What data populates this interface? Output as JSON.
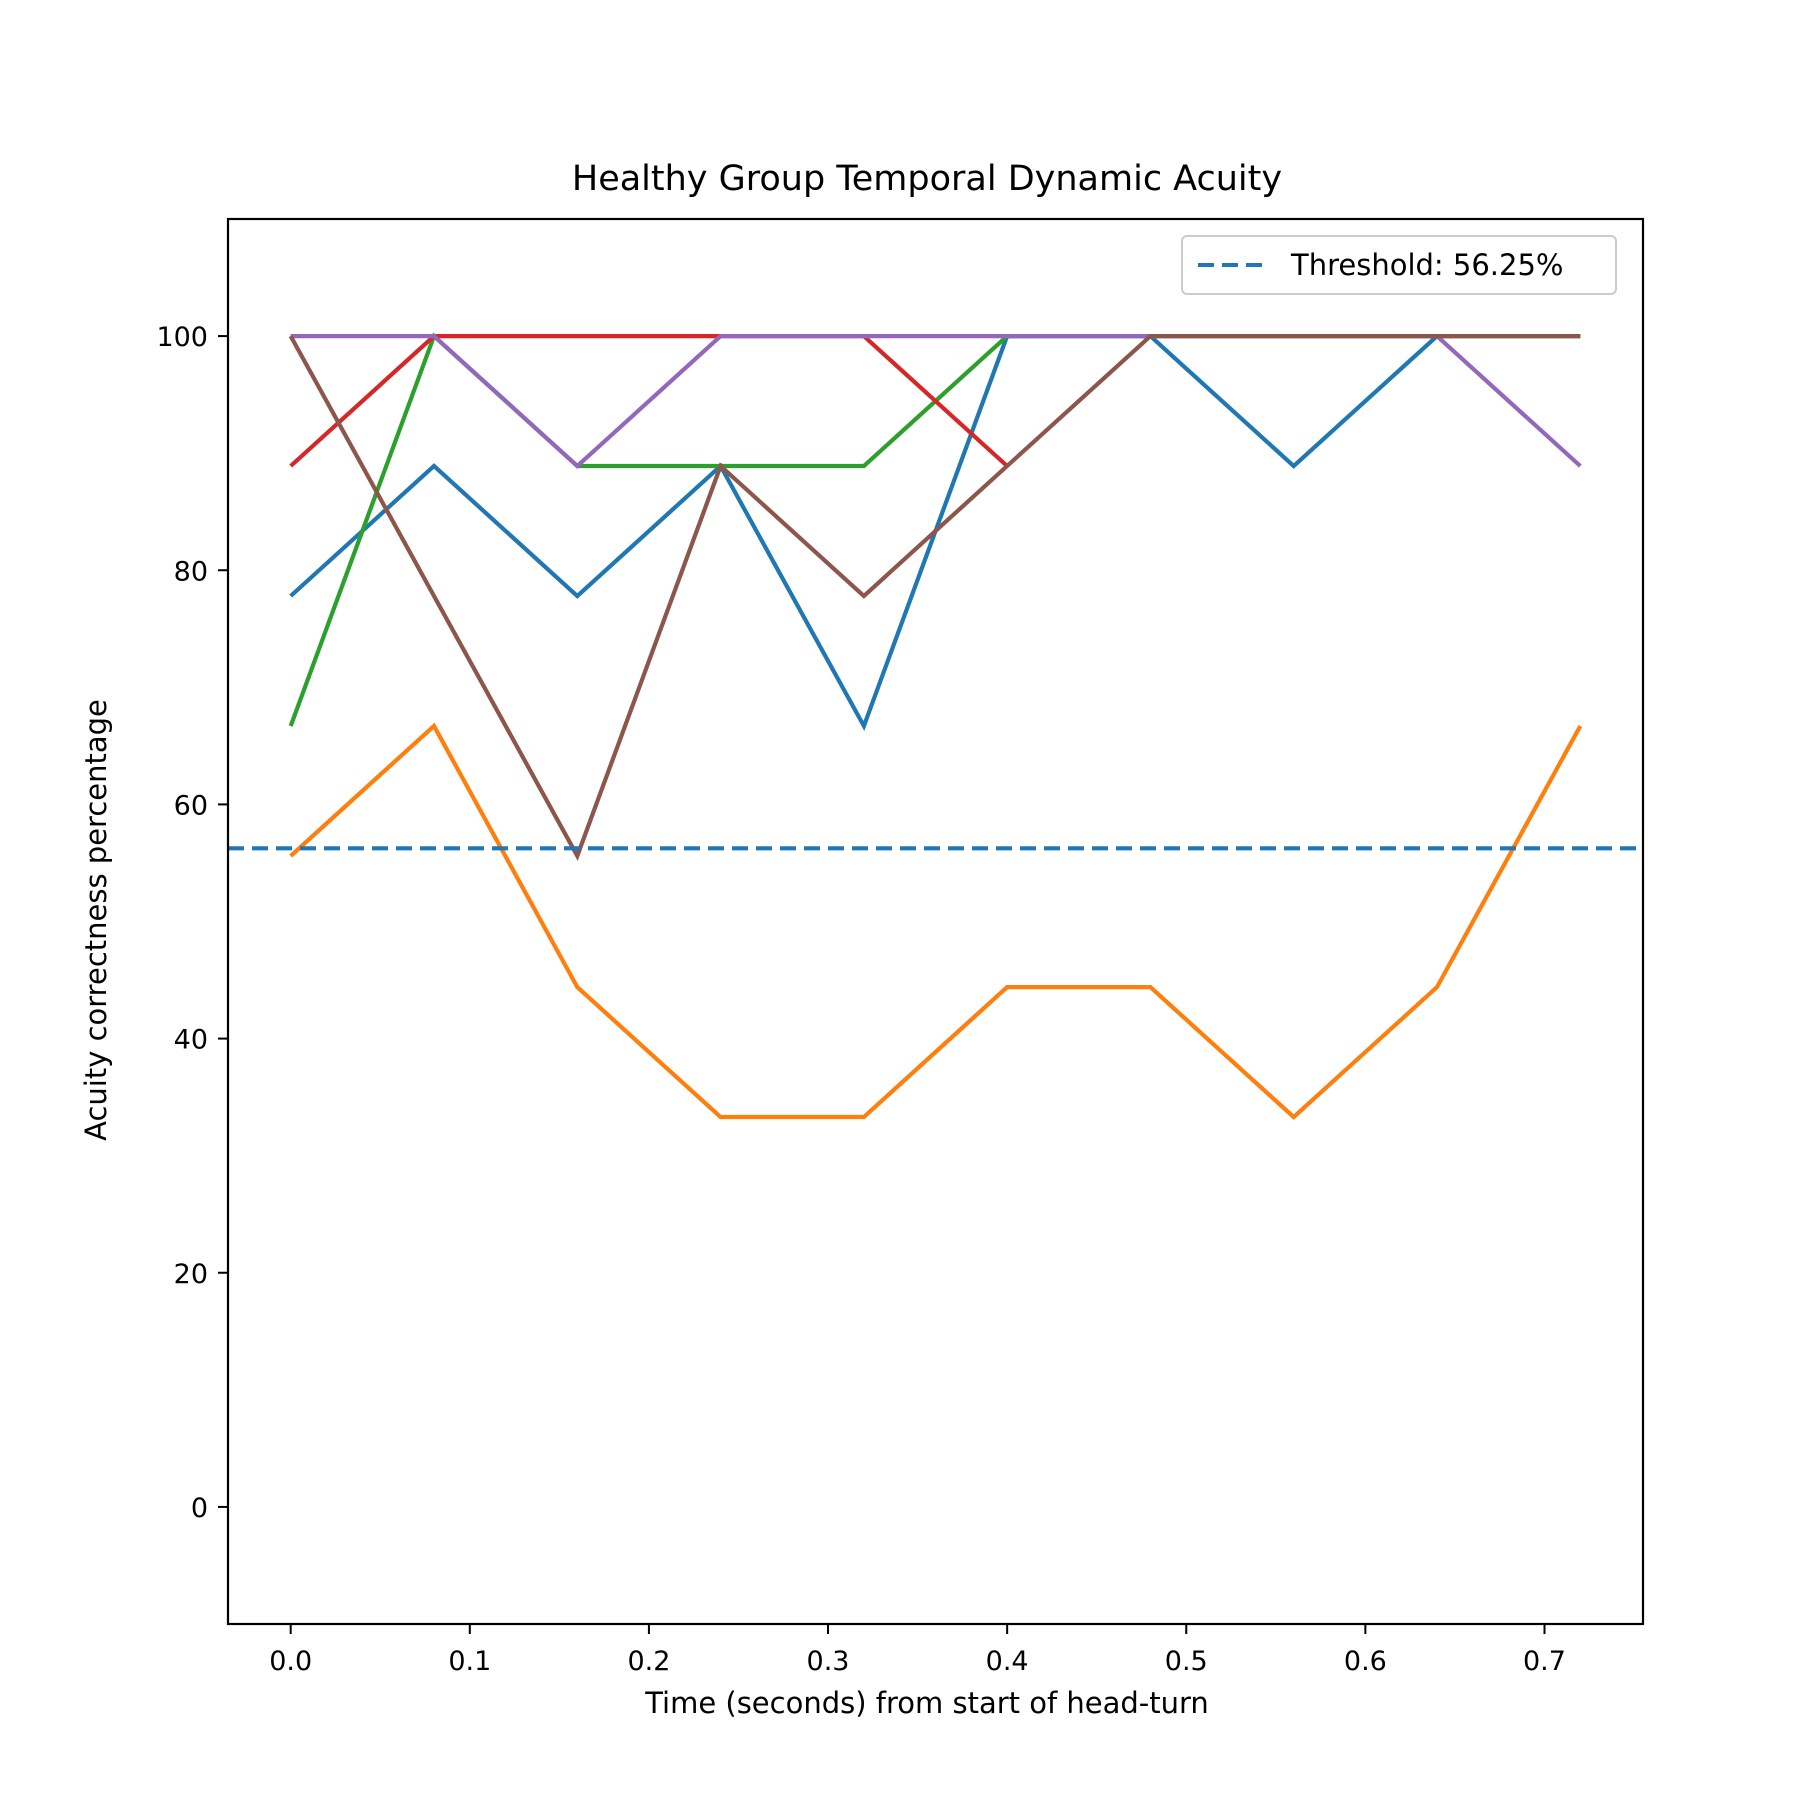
{
  "chart_data": {
    "type": "line",
    "title": "Healthy Group Temporal Dynamic Acuity",
    "xlabel": "Time (seconds) from start of head-turn",
    "ylabel": "Acuity correctness percentage",
    "xlim": [
      -0.035,
      0.755
    ],
    "ylim": [
      -10,
      110
    ],
    "xticks": [
      0.0,
      0.1,
      0.2,
      0.3,
      0.4,
      0.5,
      0.6,
      0.7
    ],
    "xtick_labels": [
      "0.0",
      "0.1",
      "0.2",
      "0.3",
      "0.4",
      "0.5",
      "0.6",
      "0.7"
    ],
    "yticks": [
      0,
      20,
      40,
      60,
      80,
      100
    ],
    "ytick_labels": [
      "0",
      "20",
      "40",
      "60",
      "80",
      "100"
    ],
    "grid": false,
    "legend_position": "top-right",
    "threshold": {
      "label": "Threshold: 56.25%",
      "value": 56.25,
      "color": "#1f77b4",
      "style": "dashed"
    },
    "series": [
      {
        "color": "#1f77b4",
        "x": [
          0.0,
          0.08,
          0.16,
          0.24,
          0.32,
          0.4,
          0.48,
          0.56,
          0.64,
          0.72
        ],
        "y": [
          77.8,
          88.9,
          77.8,
          88.9,
          66.7,
          100,
          100,
          88.9,
          100,
          100
        ]
      },
      {
        "color": "#ff7f0e",
        "x": [
          0.0,
          0.08,
          0.16,
          0.24,
          0.32,
          0.4,
          0.48,
          0.56,
          0.64,
          0.72
        ],
        "y": [
          55.6,
          66.7,
          44.4,
          33.3,
          33.3,
          44.4,
          44.4,
          33.3,
          44.4,
          66.7
        ]
      },
      {
        "color": "#2ca02c",
        "x": [
          0.0,
          0.08,
          0.16,
          0.24,
          0.32,
          0.4,
          0.48,
          0.56,
          0.64,
          0.72
        ],
        "y": [
          66.7,
          100,
          88.9,
          88.9,
          88.9,
          100,
          100,
          100,
          100,
          100
        ]
      },
      {
        "color": "#d62728",
        "x": [
          0.0,
          0.08,
          0.16,
          0.24,
          0.32,
          0.4
        ],
        "y": [
          88.9,
          100,
          100,
          100,
          100,
          88.9
        ]
      },
      {
        "color": "#9467bd",
        "x": [
          0.0,
          0.08,
          0.16,
          0.24,
          0.32,
          0.4,
          0.48,
          0.56,
          0.64,
          0.72
        ],
        "y": [
          100,
          100,
          88.9,
          100,
          100,
          100,
          100,
          100,
          100,
          88.9
        ]
      },
      {
        "color": "#8c564b",
        "x": [
          0.0,
          0.08,
          0.16,
          0.24,
          0.32,
          0.4,
          0.48,
          0.56,
          0.64,
          0.72
        ],
        "y": [
          100,
          77.8,
          55.6,
          88.9,
          77.8,
          88.9,
          100,
          100,
          100,
          100
        ]
      }
    ]
  }
}
